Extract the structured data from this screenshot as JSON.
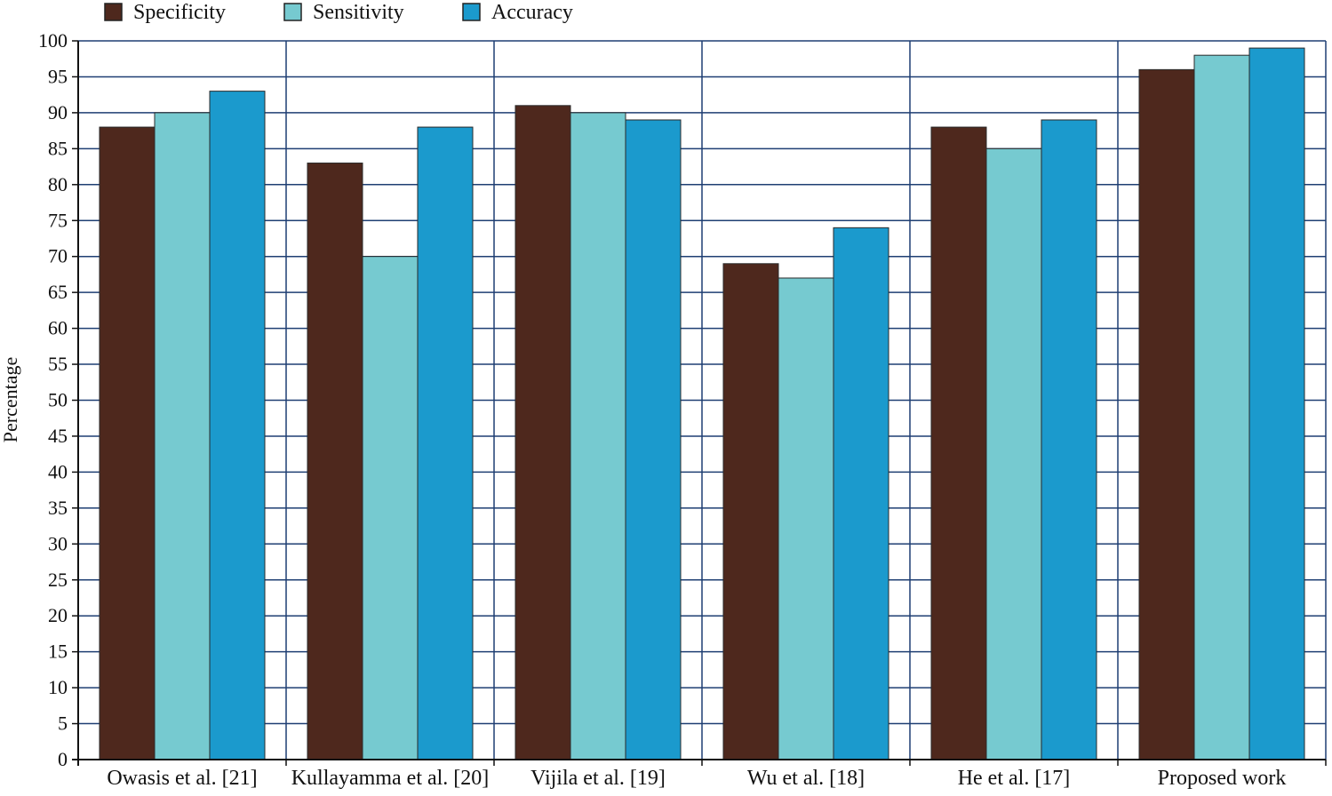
{
  "chart_data": {
    "type": "bar",
    "title": "",
    "xlabel": "",
    "ylabel": "Percentage",
    "ylim": [
      0,
      100
    ],
    "ytick_step": 5,
    "grid": true,
    "legend_position": "top-left",
    "categories": [
      "Owasis et al. [21]",
      "Kullayamma et al. [20]",
      "Vijila et al. [19]",
      "Wu et al. [18]",
      "He et al. [17]",
      "Proposed work"
    ],
    "series": [
      {
        "name": "Specificity",
        "color": "#4e281d",
        "values": [
          88,
          83,
          91,
          69,
          88,
          96
        ]
      },
      {
        "name": "Sensitivity",
        "color": "#76cad0",
        "values": [
          90,
          70,
          90,
          67,
          85,
          98
        ]
      },
      {
        "name": "Accuracy",
        "color": "#1b9acd",
        "values": [
          93,
          88,
          89,
          74,
          89,
          99
        ]
      }
    ],
    "colors": {
      "grid": "#1f3f73",
      "axis": "#111111",
      "bar_outline": "#2a2a2a"
    }
  }
}
